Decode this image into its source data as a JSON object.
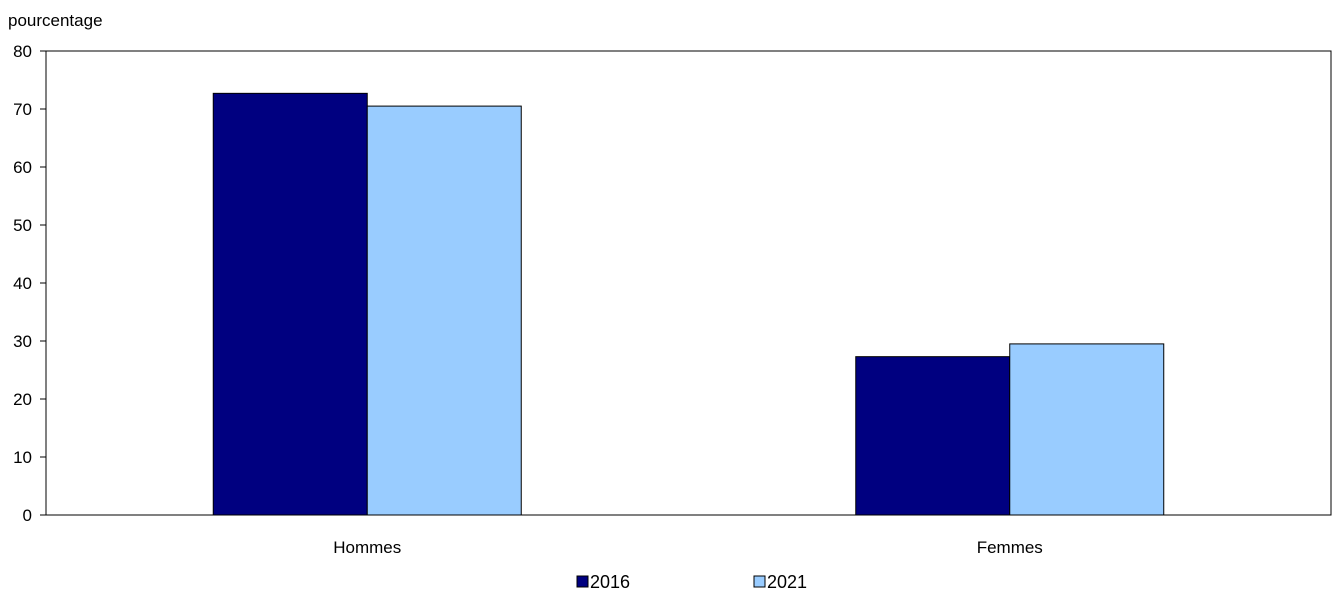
{
  "chart_data": {
    "type": "bar",
    "title": "",
    "xlabel": "",
    "ylabel": "pourcentage",
    "categories": [
      "Hommes",
      "Femmes"
    ],
    "series": [
      {
        "name": "2016",
        "values": [
          72.7,
          27.3
        ],
        "color": "#000080"
      },
      {
        "name": "2021",
        "values": [
          70.5,
          29.5
        ],
        "color": "#99ccff"
      }
    ],
    "ylim": [
      0,
      80
    ],
    "yticks": [
      "0",
      "10",
      "20",
      "30",
      "40",
      "50",
      "60",
      "70",
      "80"
    ],
    "grid": false,
    "legend_position": "bottom-center",
    "bar_border_color": "#000000",
    "axis_color": "#000000"
  }
}
